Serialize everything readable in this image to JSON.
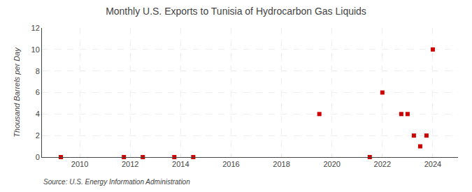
{
  "chart_data": {
    "type": "scatter",
    "title": "Monthly U.S. Exports to Tunisia of Hydrocarbon Gas Liquids",
    "y_label": "Thousand Barrels per Day",
    "annotations": [
      "Source: U.S. Energy Information Administration"
    ],
    "x": [
      2009.25,
      2011.75,
      2012.5,
      2013.75,
      2014.5,
      2019.5,
      2021.5,
      2022.0,
      2022.75,
      2023.0,
      2023.25,
      2023.5,
      2023.75,
      2024.0
    ],
    "values": [
      0,
      0,
      0,
      0,
      0,
      4,
      0,
      6,
      4,
      4,
      2,
      1,
      2,
      10
    ],
    "color": "#cc0000",
    "marker": "square",
    "xlim": [
      2008.5,
      2025
    ],
    "xticks": [
      2010,
      2012,
      2014,
      2016,
      2018,
      2020,
      2022,
      2024
    ],
    "ylim": [
      0,
      12
    ],
    "yticks": [
      0,
      2,
      4,
      6,
      8,
      10,
      12
    ],
    "grid": true
  }
}
